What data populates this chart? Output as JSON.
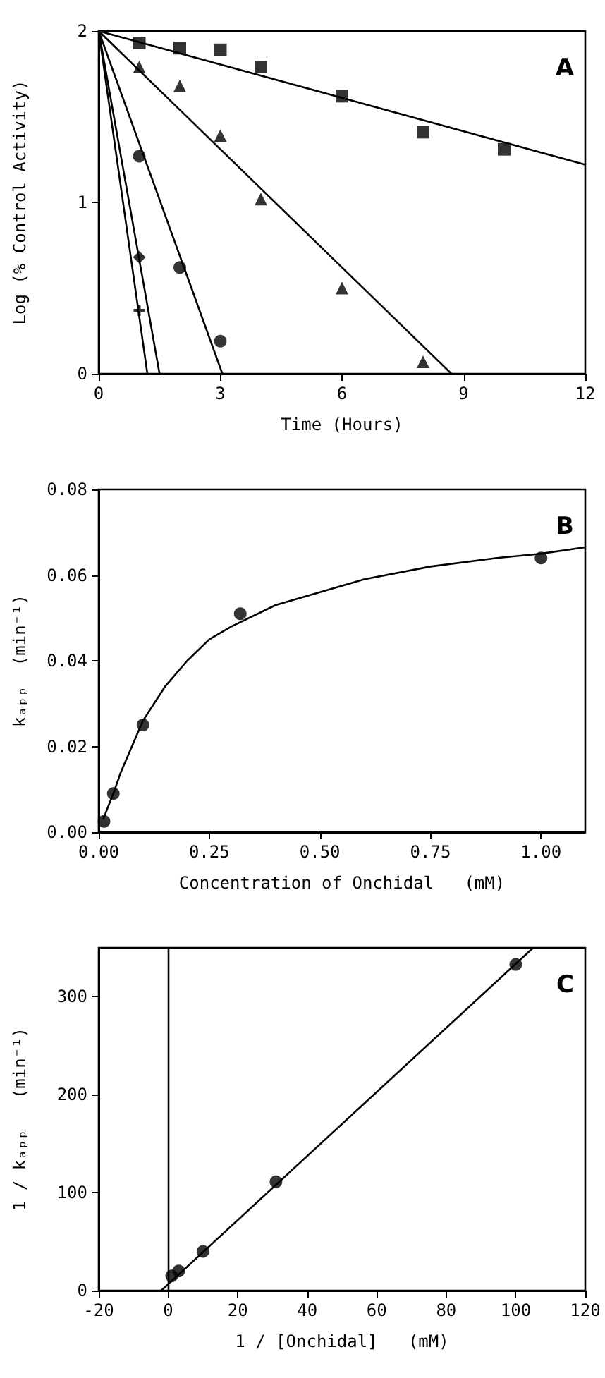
{
  "chart_data": [
    {
      "type": "scatter",
      "xlabel": "Time (Hours)",
      "ylabel": "Log (% Control Activity)",
      "annotations": [
        "A"
      ],
      "xlim": [
        0,
        12
      ],
      "xticks": [
        0,
        3,
        6,
        9,
        12
      ],
      "ylim": [
        0,
        2
      ],
      "yticks": [
        0,
        1,
        2
      ],
      "series": [
        {
          "color": "#000000",
          "marker": "square",
          "x": [
            1,
            2,
            3,
            4,
            6,
            8,
            10
          ],
          "values": [
            1.93,
            1.9,
            1.89,
            1.79,
            1.62,
            1.41,
            1.31
          ]
        },
        {
          "color": "#000000",
          "marker": "triangle",
          "x": [
            1,
            2,
            3,
            4,
            6,
            8
          ],
          "values": [
            1.79,
            1.68,
            1.39,
            1.02,
            0.5,
            0.07
          ]
        },
        {
          "color": "#000000",
          "marker": "circle",
          "x": [
            1,
            2,
            3
          ],
          "values": [
            1.27,
            0.62,
            0.19
          ]
        },
        {
          "color": "#000000",
          "marker": "diamond",
          "x": [
            1
          ],
          "values": [
            0.68
          ]
        },
        {
          "color": "#000000",
          "marker": "cross",
          "x": [
            1
          ],
          "values": [
            0.37
          ]
        },
        {
          "type": "line",
          "color": "#000000",
          "marker": "none",
          "x": [
            0,
            12
          ],
          "values": [
            2,
            1.22
          ]
        },
        {
          "type": "line",
          "color": "#000000",
          "marker": "none",
          "x": [
            0,
            8.7
          ],
          "values": [
            2,
            0
          ]
        },
        {
          "type": "line",
          "color": "#000000",
          "marker": "none",
          "x": [
            0,
            3.05
          ],
          "values": [
            2,
            0
          ]
        },
        {
          "type": "line",
          "color": "#000000",
          "marker": "none",
          "x": [
            0,
            1.5
          ],
          "values": [
            2,
            0
          ]
        },
        {
          "type": "line",
          "color": "#000000",
          "marker": "none",
          "x": [
            0,
            1.2
          ],
          "values": [
            2,
            0
          ]
        }
      ]
    },
    {
      "type": "scatter",
      "xlabel": "Concentration of Onchidal   (mM)",
      "ylabel": "kₐₚₚ  (min⁻¹)",
      "annotations": [
        "B"
      ],
      "marker": "circle",
      "xlim": [
        0,
        1.1
      ],
      "xticks": [
        {
          "value": 0,
          "label": "0.00"
        },
        {
          "value": 0.25,
          "label": "0.25"
        },
        {
          "value": 0.5,
          "label": "0.50"
        },
        {
          "value": 0.75,
          "label": "0.75"
        },
        {
          "value": 1,
          "label": "1.00"
        }
      ],
      "ylim": [
        0,
        0.08
      ],
      "yticks": [
        {
          "value": 0,
          "label": "0.00"
        },
        {
          "value": 0.02,
          "label": "0.02"
        },
        {
          "value": 0.04,
          "label": "0.04"
        },
        {
          "value": 0.06,
          "label": "0.06"
        },
        {
          "value": 0.08,
          "label": "0.08"
        }
      ],
      "series": [
        {
          "color": "#000000",
          "x": [
            0.012,
            0.033,
            0.1,
            0.32,
            1.0
          ],
          "values": [
            0.0025,
            0.009,
            0.025,
            0.051,
            0.064
          ]
        },
        {
          "type": "line",
          "color": "#000000",
          "marker": "none",
          "x": [
            0.01,
            0.033,
            0.05,
            0.1,
            0.15,
            0.2,
            0.25,
            0.3,
            0.4,
            0.5,
            0.6,
            0.75,
            0.9,
            1.0,
            1.1
          ],
          "values": [
            0.003,
            0.009,
            0.014,
            0.026,
            0.034,
            0.04,
            0.045,
            0.048,
            0.053,
            0.056,
            0.059,
            0.062,
            0.064,
            0.065,
            0.0665
          ]
        }
      ]
    },
    {
      "type": "scatter",
      "xlabel": "1 / [Onchidal]   (mM)",
      "ylabel": "1 / kₐₚₚ   (min⁻¹)",
      "annotations": [
        "C"
      ],
      "marker": "circle",
      "xlim": [
        -20,
        120
      ],
      "xticks": [
        -20,
        0,
        20,
        40,
        60,
        80,
        100,
        120
      ],
      "ylim": [
        0,
        350
      ],
      "yticks": [
        0,
        100,
        200,
        300
      ],
      "ref_lines": [
        {
          "axis": "x",
          "value": 0,
          "color": "#000000"
        }
      ],
      "series": [
        {
          "color": "#000000",
          "x": [
            1,
            3,
            10,
            31,
            100
          ],
          "values": [
            15,
            20,
            40,
            111,
            333
          ]
        },
        {
          "type": "line",
          "color": "#000000",
          "marker": "none",
          "x": [
            -2,
            105
          ],
          "values": [
            0,
            350
          ]
        }
      ]
    }
  ]
}
